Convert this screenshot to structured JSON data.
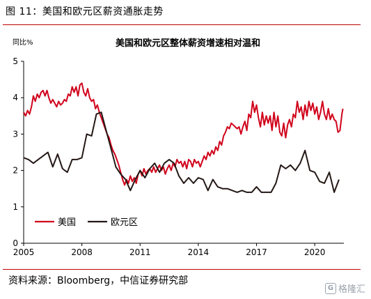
{
  "figure": {
    "title": "图 11：美国和欧元区薪资通胀走势",
    "source": "资料来源：Bloomberg，中信证券研究部",
    "watermark_icon": "G",
    "watermark": "格隆汇"
  },
  "colors": {
    "us": "#d0021b",
    "eu": "#231815",
    "rule": "#c00000"
  },
  "chart_data": {
    "type": "line",
    "title": "美国和欧元区整体薪资增速相对温和",
    "ylabel": "同比%",
    "xlim": [
      2005,
      2021.5
    ],
    "ylim": [
      0,
      5
    ],
    "yticks": [
      0,
      1,
      2,
      3,
      4,
      5
    ],
    "xticks": [
      2005,
      2008,
      2011,
      2014,
      2017,
      2020
    ],
    "legend_position": "lower-left",
    "series": [
      {
        "name": "美国",
        "color": "#d0021b",
        "points": [
          [
            2005.0,
            3.6
          ],
          [
            2005.1,
            3.5
          ],
          [
            2005.2,
            3.65
          ],
          [
            2005.3,
            3.55
          ],
          [
            2005.4,
            3.75
          ],
          [
            2005.5,
            4.05
          ],
          [
            2005.6,
            3.9
          ],
          [
            2005.7,
            4.1
          ],
          [
            2005.8,
            4.0
          ],
          [
            2005.9,
            4.15
          ],
          [
            2006.0,
            4.2
          ],
          [
            2006.1,
            4.05
          ],
          [
            2006.2,
            4.2
          ],
          [
            2006.3,
            4.0
          ],
          [
            2006.4,
            3.85
          ],
          [
            2006.5,
            3.95
          ],
          [
            2006.6,
            3.85
          ],
          [
            2006.7,
            3.75
          ],
          [
            2006.8,
            3.9
          ],
          [
            2006.9,
            3.8
          ],
          [
            2007.0,
            3.85
          ],
          [
            2007.1,
            3.95
          ],
          [
            2007.2,
            3.9
          ],
          [
            2007.3,
            4.1
          ],
          [
            2007.4,
            4.05
          ],
          [
            2007.5,
            4.3
          ],
          [
            2007.6,
            4.15
          ],
          [
            2007.7,
            4.3
          ],
          [
            2007.8,
            4.05
          ],
          [
            2007.9,
            4.35
          ],
          [
            2008.0,
            4.4
          ],
          [
            2008.1,
            4.15
          ],
          [
            2008.2,
            4.05
          ],
          [
            2008.3,
            4.25
          ],
          [
            2008.4,
            4.0
          ],
          [
            2008.5,
            3.9
          ],
          [
            2008.6,
            3.95
          ],
          [
            2008.7,
            3.7
          ],
          [
            2008.8,
            3.8
          ],
          [
            2008.9,
            3.6
          ],
          [
            2009.0,
            3.45
          ],
          [
            2009.1,
            3.3
          ],
          [
            2009.2,
            3.15
          ],
          [
            2009.3,
            3.0
          ],
          [
            2009.4,
            2.9
          ],
          [
            2009.5,
            2.7
          ],
          [
            2009.6,
            2.55
          ],
          [
            2009.7,
            2.45
          ],
          [
            2009.8,
            2.3
          ],
          [
            2009.9,
            2.15
          ],
          [
            2010.0,
            1.95
          ],
          [
            2010.1,
            1.75
          ],
          [
            2010.2,
            1.6
          ],
          [
            2010.3,
            1.75
          ],
          [
            2010.4,
            1.65
          ],
          [
            2010.5,
            1.85
          ],
          [
            2010.6,
            1.7
          ],
          [
            2010.7,
            1.8
          ],
          [
            2010.8,
            1.65
          ],
          [
            2010.9,
            1.9
          ],
          [
            2011.0,
            2.0
          ],
          [
            2011.1,
            1.85
          ],
          [
            2011.2,
            2.05
          ],
          [
            2011.3,
            1.9
          ],
          [
            2011.4,
            2.0
          ],
          [
            2011.5,
            2.05
          ],
          [
            2011.6,
            1.95
          ],
          [
            2011.7,
            2.1
          ],
          [
            2011.8,
            1.95
          ],
          [
            2011.9,
            2.05
          ],
          [
            2012.0,
            2.15
          ],
          [
            2012.1,
            2.0
          ],
          [
            2012.2,
            2.1
          ],
          [
            2012.3,
            1.9
          ],
          [
            2012.4,
            2.05
          ],
          [
            2012.5,
            2.15
          ],
          [
            2012.6,
            2.0
          ],
          [
            2012.7,
            2.2
          ],
          [
            2012.8,
            2.1
          ],
          [
            2012.9,
            2.3
          ],
          [
            2013.0,
            2.2
          ],
          [
            2013.1,
            2.25
          ],
          [
            2013.2,
            2.1
          ],
          [
            2013.3,
            2.25
          ],
          [
            2013.4,
            2.05
          ],
          [
            2013.5,
            2.3
          ],
          [
            2013.6,
            2.25
          ],
          [
            2013.7,
            2.1
          ],
          [
            2013.8,
            2.3
          ],
          [
            2013.9,
            2.2
          ],
          [
            2014.0,
            2.25
          ],
          [
            2014.1,
            2.1
          ],
          [
            2014.2,
            2.25
          ],
          [
            2014.3,
            2.4
          ],
          [
            2014.4,
            2.3
          ],
          [
            2014.5,
            2.5
          ],
          [
            2014.6,
            2.4
          ],
          [
            2014.7,
            2.55
          ],
          [
            2014.8,
            2.45
          ],
          [
            2014.9,
            2.65
          ],
          [
            2015.0,
            2.55
          ],
          [
            2015.1,
            2.8
          ],
          [
            2015.2,
            2.7
          ],
          [
            2015.3,
            2.95
          ],
          [
            2015.4,
            3.05
          ],
          [
            2015.5,
            3.2
          ],
          [
            2015.6,
            3.15
          ],
          [
            2015.7,
            3.3
          ],
          [
            2015.8,
            3.25
          ],
          [
            2015.9,
            3.2
          ],
          [
            2016.0,
            3.15
          ],
          [
            2016.1,
            3.2
          ],
          [
            2016.2,
            3.0
          ],
          [
            2016.3,
            3.2
          ],
          [
            2016.4,
            3.35
          ],
          [
            2016.5,
            3.1
          ],
          [
            2016.6,
            3.55
          ],
          [
            2016.7,
            3.45
          ],
          [
            2016.8,
            3.9
          ],
          [
            2016.9,
            3.6
          ],
          [
            2017.0,
            3.8
          ],
          [
            2017.1,
            3.45
          ],
          [
            2017.2,
            3.2
          ],
          [
            2017.3,
            3.6
          ],
          [
            2017.4,
            3.25
          ],
          [
            2017.5,
            3.5
          ],
          [
            2017.6,
            3.3
          ],
          [
            2017.7,
            3.5
          ],
          [
            2017.8,
            3.1
          ],
          [
            2017.9,
            3.6
          ],
          [
            2018.0,
            3.2
          ],
          [
            2018.1,
            3.5
          ],
          [
            2018.2,
            3.05
          ],
          [
            2018.3,
            2.95
          ],
          [
            2018.4,
            3.3
          ],
          [
            2018.5,
            2.9
          ],
          [
            2018.6,
            3.25
          ],
          [
            2018.7,
            3.4
          ],
          [
            2018.8,
            3.2
          ],
          [
            2018.9,
            3.55
          ],
          [
            2019.0,
            3.45
          ],
          [
            2019.1,
            3.9
          ],
          [
            2019.2,
            3.6
          ],
          [
            2019.3,
            3.75
          ],
          [
            2019.4,
            3.4
          ],
          [
            2019.5,
            3.8
          ],
          [
            2019.6,
            3.5
          ],
          [
            2019.7,
            3.9
          ],
          [
            2019.8,
            3.65
          ],
          [
            2019.9,
            3.85
          ],
          [
            2020.0,
            3.55
          ],
          [
            2020.1,
            3.75
          ],
          [
            2020.2,
            3.4
          ],
          [
            2020.3,
            3.6
          ],
          [
            2020.4,
            3.9
          ],
          [
            2020.5,
            3.55
          ],
          [
            2020.6,
            3.4
          ],
          [
            2020.7,
            3.7
          ],
          [
            2020.8,
            3.4
          ],
          [
            2020.9,
            3.55
          ],
          [
            2021.0,
            3.4
          ],
          [
            2021.1,
            3.35
          ],
          [
            2021.2,
            3.05
          ],
          [
            2021.3,
            3.1
          ],
          [
            2021.4,
            3.55
          ],
          [
            2021.45,
            3.7
          ]
        ]
      },
      {
        "name": "欧元区",
        "color": "#231815",
        "points": [
          [
            2005.0,
            2.35
          ],
          [
            2005.25,
            2.3
          ],
          [
            2005.5,
            2.2
          ],
          [
            2005.75,
            2.3
          ],
          [
            2006.0,
            2.4
          ],
          [
            2006.25,
            2.5
          ],
          [
            2006.5,
            2.1
          ],
          [
            2006.75,
            2.45
          ],
          [
            2007.0,
            2.05
          ],
          [
            2007.25,
            1.95
          ],
          [
            2007.5,
            2.3
          ],
          [
            2007.75,
            2.3
          ],
          [
            2008.0,
            2.35
          ],
          [
            2008.25,
            3.0
          ],
          [
            2008.5,
            2.95
          ],
          [
            2008.75,
            3.55
          ],
          [
            2009.0,
            3.6
          ],
          [
            2009.25,
            3.1
          ],
          [
            2009.5,
            2.6
          ],
          [
            2009.75,
            2.1
          ],
          [
            2010.0,
            1.9
          ],
          [
            2010.25,
            1.75
          ],
          [
            2010.5,
            1.45
          ],
          [
            2010.75,
            1.75
          ],
          [
            2011.0,
            2.0
          ],
          [
            2011.25,
            1.8
          ],
          [
            2011.5,
            2.05
          ],
          [
            2011.75,
            2.2
          ],
          [
            2012.0,
            1.95
          ],
          [
            2012.25,
            2.2
          ],
          [
            2012.5,
            2.3
          ],
          [
            2012.75,
            2.2
          ],
          [
            2013.0,
            1.85
          ],
          [
            2013.25,
            1.65
          ],
          [
            2013.5,
            1.8
          ],
          [
            2013.75,
            1.65
          ],
          [
            2014.0,
            1.8
          ],
          [
            2014.25,
            1.75
          ],
          [
            2014.5,
            1.45
          ],
          [
            2014.75,
            1.75
          ],
          [
            2015.0,
            1.55
          ],
          [
            2015.25,
            1.5
          ],
          [
            2015.5,
            1.5
          ],
          [
            2015.75,
            1.45
          ],
          [
            2016.0,
            1.4
          ],
          [
            2016.25,
            1.45
          ],
          [
            2016.5,
            1.4
          ],
          [
            2016.75,
            1.4
          ],
          [
            2017.0,
            1.55
          ],
          [
            2017.25,
            1.4
          ],
          [
            2017.5,
            1.4
          ],
          [
            2017.75,
            1.4
          ],
          [
            2018.0,
            1.65
          ],
          [
            2018.25,
            2.15
          ],
          [
            2018.5,
            2.05
          ],
          [
            2018.75,
            2.15
          ],
          [
            2019.0,
            2.0
          ],
          [
            2019.25,
            2.2
          ],
          [
            2019.5,
            2.55
          ],
          [
            2019.75,
            2.0
          ],
          [
            2020.0,
            1.95
          ],
          [
            2020.25,
            1.7
          ],
          [
            2020.5,
            1.65
          ],
          [
            2020.75,
            1.95
          ],
          [
            2021.0,
            1.4
          ],
          [
            2021.25,
            1.75
          ]
        ]
      }
    ]
  }
}
